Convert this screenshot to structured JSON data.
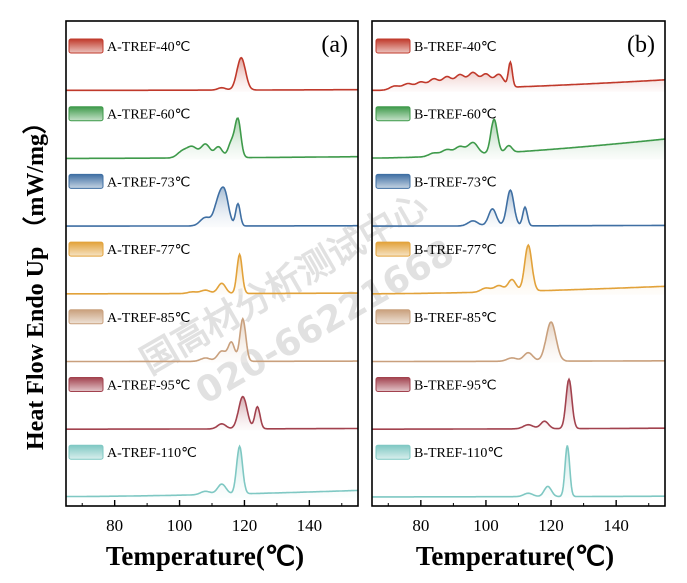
{
  "chart_data": {
    "type": "line",
    "xlabel": "Temperature(℃)",
    "ylabel": "Heat Flow Endo Up （mW/mg）",
    "xlim": [
      65,
      155
    ],
    "xticks": [
      80,
      100,
      120,
      140
    ],
    "watermark": [
      "国高材分析测试中心",
      "020-66221668"
    ],
    "panels": [
      {
        "label": "(a)",
        "series": [
          {
            "name": "A-TREF-40℃",
            "color": "#c0392b",
            "baseline": [
              0.04,
              0.06
            ],
            "peaks": [
              [
                113,
                0.07,
                1.2
              ],
              [
                119,
                0.95,
                1.3
              ]
            ]
          },
          {
            "name": "A-TREF-60℃",
            "color": "#3e9a4a",
            "baseline": [
              0.03,
              0.08
            ],
            "peaks": [
              [
                101,
                0.2,
                1.6
              ],
              [
                104,
                0.3,
                1.5
              ],
              [
                108,
                0.4,
                1.4
              ],
              [
                112,
                0.32,
                1.2
              ],
              [
                116,
                0.45,
                1.0
              ],
              [
                118,
                1.1,
                0.9
              ]
            ]
          },
          {
            "name": "A-TREF-73℃",
            "color": "#3f6fa3",
            "baseline": [
              0.03,
              0.04
            ],
            "peaks": [
              [
                108,
                0.25,
                1.6
              ],
              [
                112,
                0.7,
                1.3
              ],
              [
                114,
                0.85,
                1.2
              ],
              [
                118,
                0.65,
                0.7
              ]
            ]
          },
          {
            "name": "A-TREF-77℃",
            "color": "#e2a23a",
            "baseline": [
              0.03,
              0.05
            ],
            "peaks": [
              [
                104,
                0.05,
                1.5
              ],
              [
                108,
                0.1,
                1.4
              ],
              [
                113,
                0.3,
                1.2
              ],
              [
                118.5,
                1.15,
                0.8
              ]
            ]
          },
          {
            "name": "A-TREF-85℃",
            "color": "#c9a07d",
            "baseline": [
              0.03,
              0.04
            ],
            "peaks": [
              [
                108,
                0.1,
                1.5
              ],
              [
                113,
                0.3,
                1.3
              ],
              [
                116,
                0.55,
                1.0
              ],
              [
                119.5,
                1.25,
                0.9
              ]
            ]
          },
          {
            "name": "A-TREF-95℃",
            "color": "#a2424e",
            "baseline": [
              0.03,
              0.05
            ],
            "peaks": [
              [
                113,
                0.15,
                1.3
              ],
              [
                119.5,
                0.95,
                1.3
              ],
              [
                124,
                0.65,
                0.8
              ]
            ]
          },
          {
            "name": "A-TREF-110℃",
            "color": "#7fc8c3",
            "baseline": [
              0.04,
              0.22
            ],
            "peaks": [
              [
                108,
                0.1,
                1.5
              ],
              [
                113,
                0.3,
                1.3
              ],
              [
                118.5,
                1.4,
                0.9
              ]
            ]
          }
        ]
      },
      {
        "label": "(b)",
        "series": [
          {
            "name": "B-TREF-40℃",
            "color": "#c0392b",
            "baseline": [
              0.04,
              0.35
            ],
            "peaks": [
              [
                72,
                0.12,
                1.5
              ],
              [
                76,
                0.18,
                1.5
              ],
              [
                80,
                0.22,
                1.5
              ],
              [
                84,
                0.3,
                1.5
              ],
              [
                88,
                0.35,
                1.5
              ],
              [
                92,
                0.4,
                1.5
              ],
              [
                96,
                0.45,
                1.5
              ],
              [
                100,
                0.4,
                1.5
              ],
              [
                104,
                0.38,
                1.4
              ],
              [
                107.5,
                0.72,
                0.6
              ]
            ]
          },
          {
            "name": "B-TREF-60℃",
            "color": "#3e9a4a",
            "baseline": [
              0.04,
              0.6
            ],
            "peaks": [
              [
                84,
                0.1,
                1.5
              ],
              [
                88,
                0.18,
                1.5
              ],
              [
                92,
                0.25,
                1.5
              ],
              [
                96,
                0.35,
                1.5
              ],
              [
                102.5,
                1.0,
                1.0
              ],
              [
                107,
                0.2,
                1.0
              ]
            ]
          },
          {
            "name": "B-TREF-73℃",
            "color": "#3f6fa3",
            "baseline": [
              0.03,
              0.05
            ],
            "peaks": [
              [
                96,
                0.15,
                1.5
              ],
              [
                102,
                0.5,
                1.2
              ],
              [
                107.5,
                1.05,
                1.1
              ],
              [
                112,
                0.55,
                0.7
              ]
            ]
          },
          {
            "name": "B-TREF-77℃",
            "color": "#e2a23a",
            "baseline": [
              0.03,
              0.25
            ],
            "peaks": [
              [
                100,
                0.12,
                1.5
              ],
              [
                104,
                0.18,
                1.4
              ],
              [
                108,
                0.35,
                1.2
              ],
              [
                113,
                1.35,
                1.1
              ]
            ]
          },
          {
            "name": "B-TREF-85℃",
            "color": "#c9a07d",
            "baseline": [
              0.03,
              0.05
            ],
            "peaks": [
              [
                108,
                0.1,
                1.5
              ],
              [
                113,
                0.25,
                1.4
              ],
              [
                120,
                1.15,
                1.5
              ]
            ]
          },
          {
            "name": "B-TREF-95℃",
            "color": "#a2424e",
            "baseline": [
              0.03,
              0.06
            ],
            "peaks": [
              [
                113,
                0.12,
                1.5
              ],
              [
                118,
                0.22,
                1.2
              ],
              [
                125.5,
                1.45,
                0.9
              ]
            ]
          },
          {
            "name": "B-TREF-110℃",
            "color": "#7fc8c3",
            "baseline": [
              0.03,
              0.05
            ],
            "peaks": [
              [
                113,
                0.1,
                1.4
              ],
              [
                119,
                0.3,
                1.1
              ],
              [
                125,
                1.5,
                0.7
              ]
            ]
          }
        ]
      }
    ]
  }
}
